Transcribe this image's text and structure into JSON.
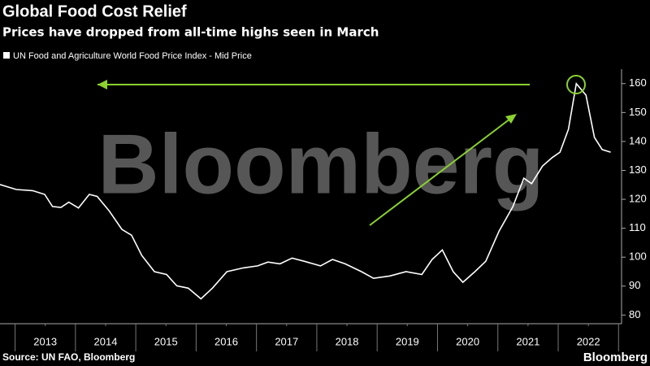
{
  "chart_data": {
    "type": "line",
    "title": "Global Food Cost Relief",
    "subtitle": "Prices have dropped from all-time highs seen in March",
    "watermark": "Bloomberg",
    "source": "Source: UN FAO, Bloomberg",
    "logo": "Bloomberg",
    "x": [
      2012.75,
      2013.02,
      2013.29,
      2013.49,
      2013.62,
      2013.76,
      2013.89,
      2014.05,
      2014.23,
      2014.36,
      2014.56,
      2014.77,
      2014.93,
      2015.1,
      2015.31,
      2015.51,
      2015.68,
      2015.87,
      2016.08,
      2016.27,
      2016.51,
      2016.78,
      2017.02,
      2017.19,
      2017.39,
      2017.59,
      2017.79,
      2018.06,
      2018.26,
      2018.47,
      2018.74,
      2018.94,
      2019.21,
      2019.48,
      2019.74,
      2019.91,
      2020.08,
      2020.26,
      2020.42,
      2020.62,
      2020.8,
      2021.02,
      2021.25,
      2021.43,
      2021.56,
      2021.74,
      2021.9,
      2022.03,
      2022.17,
      2022.3,
      2022.46,
      2022.6,
      2022.73,
      2022.87
    ],
    "series": [
      {
        "name": "UN Food and Agriculture World Food Price Index - Mid Price",
        "color": "#ffffff",
        "values": [
          125.1,
          123.4,
          123,
          121.7,
          117.5,
          117.2,
          119,
          117,
          121.7,
          121,
          116,
          109.6,
          107.6,
          100.6,
          95,
          94,
          90.1,
          89.3,
          85.6,
          89.3,
          95,
          96.3,
          97,
          98.3,
          97.7,
          99.7,
          98.6,
          97,
          99.2,
          97.7,
          95,
          92.7,
          93.5,
          95,
          94,
          99.2,
          102.5,
          95,
          91.3,
          95,
          98.6,
          109,
          117.5,
          127.3,
          125.4,
          131.5,
          134.4,
          136.3,
          144.2,
          160,
          156,
          141.4,
          137.2,
          136.3
        ]
      }
    ],
    "xlim": [
      2012.75,
      2023.05
    ],
    "ylim": [
      77,
      165
    ],
    "xticks": [
      {
        "value": 2013.5,
        "label": "2013"
      },
      {
        "value": 2014.5,
        "label": "2014"
      },
      {
        "value": 2015.5,
        "label": "2015"
      },
      {
        "value": 2016.5,
        "label": "2016"
      },
      {
        "value": 2017.5,
        "label": "2017"
      },
      {
        "value": 2018.5,
        "label": "2018"
      },
      {
        "value": 2019.5,
        "label": "2019"
      },
      {
        "value": 2020.5,
        "label": "2020"
      },
      {
        "value": 2021.5,
        "label": "2021"
      },
      {
        "value": 2022.5,
        "label": "2022"
      }
    ],
    "yticks": [
      80,
      90,
      100,
      110,
      120,
      130,
      140,
      150,
      160
    ]
  }
}
